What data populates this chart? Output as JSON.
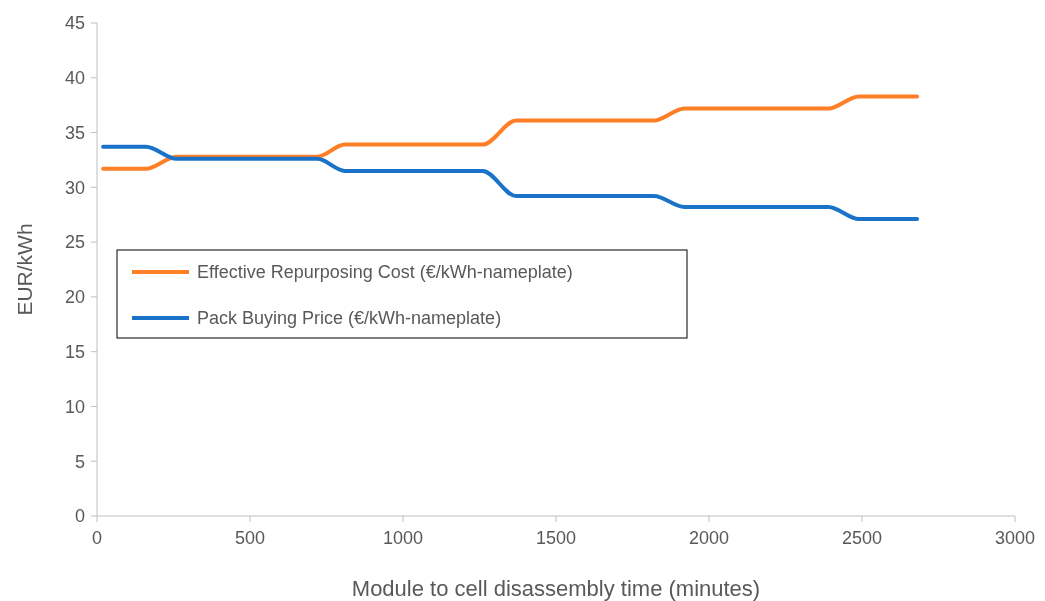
{
  "chart_data": {
    "type": "line",
    "xlabel": "Module to cell disassembly time (minutes)",
    "ylabel": "EUR/kWh",
    "xlim": [
      0,
      3000
    ],
    "xticks": [
      0,
      500,
      1000,
      1500,
      2000,
      2500,
      3000
    ],
    "ylim": [
      0,
      45
    ],
    "yticks": [
      0,
      5,
      10,
      15,
      20,
      25,
      30,
      35,
      40,
      45
    ],
    "grid": false,
    "legend": "left",
    "marker": "none",
    "line_style": "solid",
    "x": [
      20,
      160,
      260,
      720,
      810,
      1260,
      1370,
      1820,
      1920,
      2390,
      2490,
      2680
    ],
    "series": [
      {
        "name": "Effective Repurposing Cost (€/kWh-nameplate)",
        "color": "#ff7f27",
        "values": [
          31.7,
          31.7,
          32.8,
          32.8,
          33.9,
          33.9,
          36.1,
          36.1,
          37.2,
          37.2,
          38.3,
          38.3
        ]
      },
      {
        "name": "Pack Buying Price (€/kWh-nameplate)",
        "color": "#1a73c8",
        "values": [
          33.7,
          33.7,
          32.6,
          32.6,
          31.5,
          31.5,
          29.2,
          29.2,
          28.2,
          28.2,
          27.1,
          27.1
        ]
      }
    ]
  }
}
